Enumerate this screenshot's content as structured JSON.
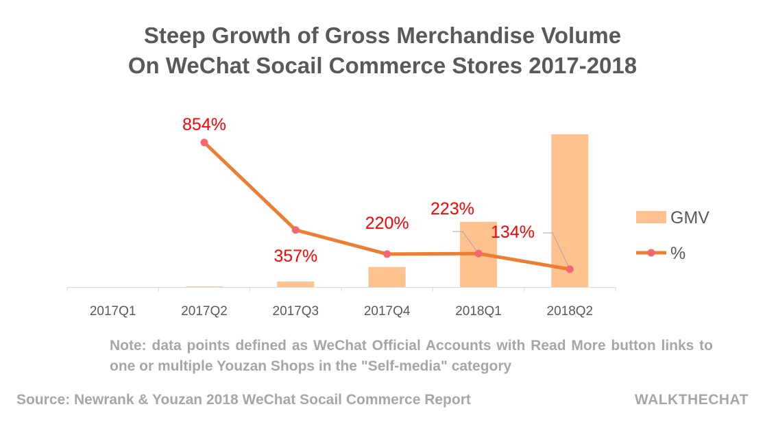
{
  "title_lines": [
    "Steep Growth of Gross Merchandise Volume",
    "On WeChat Socail Commerce Stores 2017-2018"
  ],
  "note": "Note: data points defined as WeChat Official Accounts with Read More button links to one or multiple Youzan Shops in the \"Self-media\" category",
  "source": "Source: Newrank & Youzan 2018 WeChat Socail Commerce Report",
  "brand": "WALKTHECHAT",
  "colors": {
    "bar": "#FFC28E",
    "line": "#ED7D31",
    "marker": "#F46670",
    "label": "#FF0000",
    "axis": "#D9D9D9",
    "text": "#595959"
  },
  "chart_data": {
    "type": "bar",
    "categories": [
      "2017Q1",
      "2017Q2",
      "2017Q3",
      "2017Q4",
      "2018Q1",
      "2018Q2"
    ],
    "series": [
      {
        "name": "GMV",
        "type": "bar",
        "values": [
          0,
          0.4,
          3.7,
          13.6,
          44.3,
          103.7
        ]
      },
      {
        "name": "%",
        "type": "line",
        "values": [
          null,
          854,
          357,
          220,
          223,
          134
        ],
        "labels": [
          "",
          "854%",
          "357%",
          "220%",
          "223%",
          "134%"
        ]
      }
    ],
    "legend": "right",
    "grid": false
  }
}
